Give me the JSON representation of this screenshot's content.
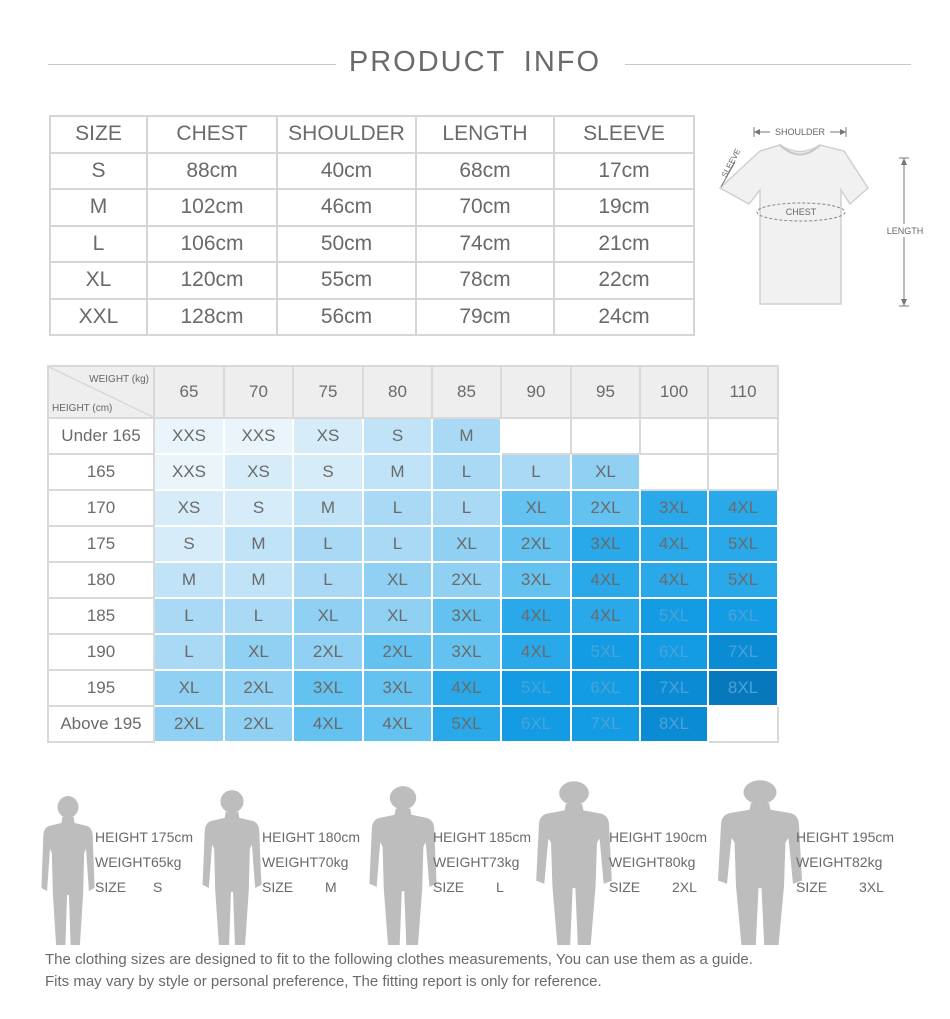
{
  "header": {
    "title": "PRODUCT  INFO"
  },
  "size_table": {
    "columns": [
      "SIZE",
      "CHEST",
      "SHOULDER",
      "LENGTH",
      "SLEEVE"
    ],
    "rows": [
      [
        "S",
        "88cm",
        "40cm",
        "68cm",
        "17cm"
      ],
      [
        "M",
        "102cm",
        "46cm",
        "70cm",
        "19cm"
      ],
      [
        "L",
        "106cm",
        "50cm",
        "74cm",
        "21cm"
      ],
      [
        "XL",
        "120cm",
        "55cm",
        "78cm",
        "22cm"
      ],
      [
        "XXL",
        "128cm",
        "56cm",
        "79cm",
        "24cm"
      ]
    ]
  },
  "shirt_diagram": {
    "shoulder": "SHOULDER",
    "sleeve": "SLEEVE",
    "chest": "CHEST",
    "length": "LENGTH"
  },
  "weight_height_chart": {
    "corner_weight": "WEIGHT  (kg)",
    "corner_height": "HEIGHT  (cm)",
    "weights": [
      "65",
      "70",
      "75",
      "80",
      "85",
      "90",
      "95",
      "100",
      "110"
    ],
    "rows": [
      {
        "height": "Under 165",
        "sizes": [
          "XXS",
          "XXS",
          "XS",
          "S",
          "M",
          "",
          "",
          "",
          ""
        ]
      },
      {
        "height": "165",
        "sizes": [
          "XXS",
          "XS",
          "S",
          "M",
          "L",
          "L",
          "XL",
          "",
          ""
        ]
      },
      {
        "height": "170",
        "sizes": [
          "XS",
          "S",
          "M",
          "L",
          "L",
          "XL",
          "2XL",
          "3XL",
          "4XL"
        ]
      },
      {
        "height": "175",
        "sizes": [
          "S",
          "M",
          "L",
          "L",
          "XL",
          "2XL",
          "3XL",
          "4XL",
          "5XL"
        ]
      },
      {
        "height": "180",
        "sizes": [
          "M",
          "M",
          "L",
          "XL",
          "2XL",
          "3XL",
          "4XL",
          "4XL",
          "5XL"
        ]
      },
      {
        "height": "185",
        "sizes": [
          "L",
          "L",
          "XL",
          "XL",
          "3XL",
          "4XL",
          "4XL",
          "5XL",
          "6XL"
        ]
      },
      {
        "height": "190",
        "sizes": [
          "L",
          "XL",
          "2XL",
          "2XL",
          "3XL",
          "4XL",
          "5XL",
          "6XL",
          "7XL"
        ]
      },
      {
        "height": "195",
        "sizes": [
          "XL",
          "2XL",
          "3XL",
          "3XL",
          "4XL",
          "5XL",
          "6XL",
          "7XL",
          "8XL"
        ]
      },
      {
        "height": "Above 195",
        "sizes": [
          "2XL",
          "2XL",
          "4XL",
          "4XL",
          "5XL",
          "6XL",
          "7XL",
          "8XL",
          ""
        ]
      }
    ],
    "shades": [
      [
        1,
        1,
        2,
        3,
        4,
        0,
        0,
        0,
        0
      ],
      [
        1,
        2,
        2,
        3,
        4,
        4,
        5,
        0,
        0
      ],
      [
        2,
        2,
        3,
        4,
        4,
        6,
        6,
        7,
        7
      ],
      [
        2,
        3,
        4,
        4,
        5,
        6,
        7,
        7,
        7
      ],
      [
        3,
        3,
        4,
        5,
        5,
        6,
        7,
        7,
        7
      ],
      [
        4,
        4,
        5,
        5,
        6,
        7,
        7,
        8,
        8
      ],
      [
        4,
        5,
        5,
        6,
        6,
        7,
        8,
        8,
        9
      ],
      [
        5,
        5,
        6,
        6,
        7,
        8,
        8,
        9,
        10
      ],
      [
        5,
        5,
        6,
        6,
        7,
        8,
        8,
        9,
        0
      ]
    ]
  },
  "shade_colors": [
    "#ffffff",
    "#e9f4fb",
    "#d7ecf9",
    "#c0e3f7",
    "#a9d9f5",
    "#8fd0f3",
    "#63c2f0",
    "#2aa9ea",
    "#139ce3",
    "#0b8bd4",
    "#0878bd"
  ],
  "figures": [
    {
      "height_label": "HEIGHT",
      "height": "175cm",
      "weight_label": "WEIGHT",
      "weight": "65kg",
      "size_label": "SIZE",
      "size": "S"
    },
    {
      "height_label": "HEIGHT",
      "height": "180cm",
      "weight_label": "WEIGHT",
      "weight": "70kg",
      "size_label": "SIZE",
      "size": "M"
    },
    {
      "height_label": "HEIGHT",
      "height": "185cm",
      "weight_label": "WEIGHT",
      "weight": "73kg",
      "size_label": "SIZE",
      "size": "L"
    },
    {
      "height_label": "HEIGHT",
      "height": "190cm",
      "weight_label": "WEIGHT",
      "weight": "80kg",
      "size_label": "SIZE",
      "size": "2XL"
    },
    {
      "height_label": "HEIGHT",
      "height": "195cm",
      "weight_label": "WEIGHT",
      "weight": "82kg",
      "size_label": "SIZE",
      "size": "3XL"
    }
  ],
  "note": {
    "line1": "The clothing sizes are designed to fit to the following clothes measurements, You can use them as a guide.",
    "line2": "Fits may vary by style or personal preference, The fitting report is only for reference."
  }
}
